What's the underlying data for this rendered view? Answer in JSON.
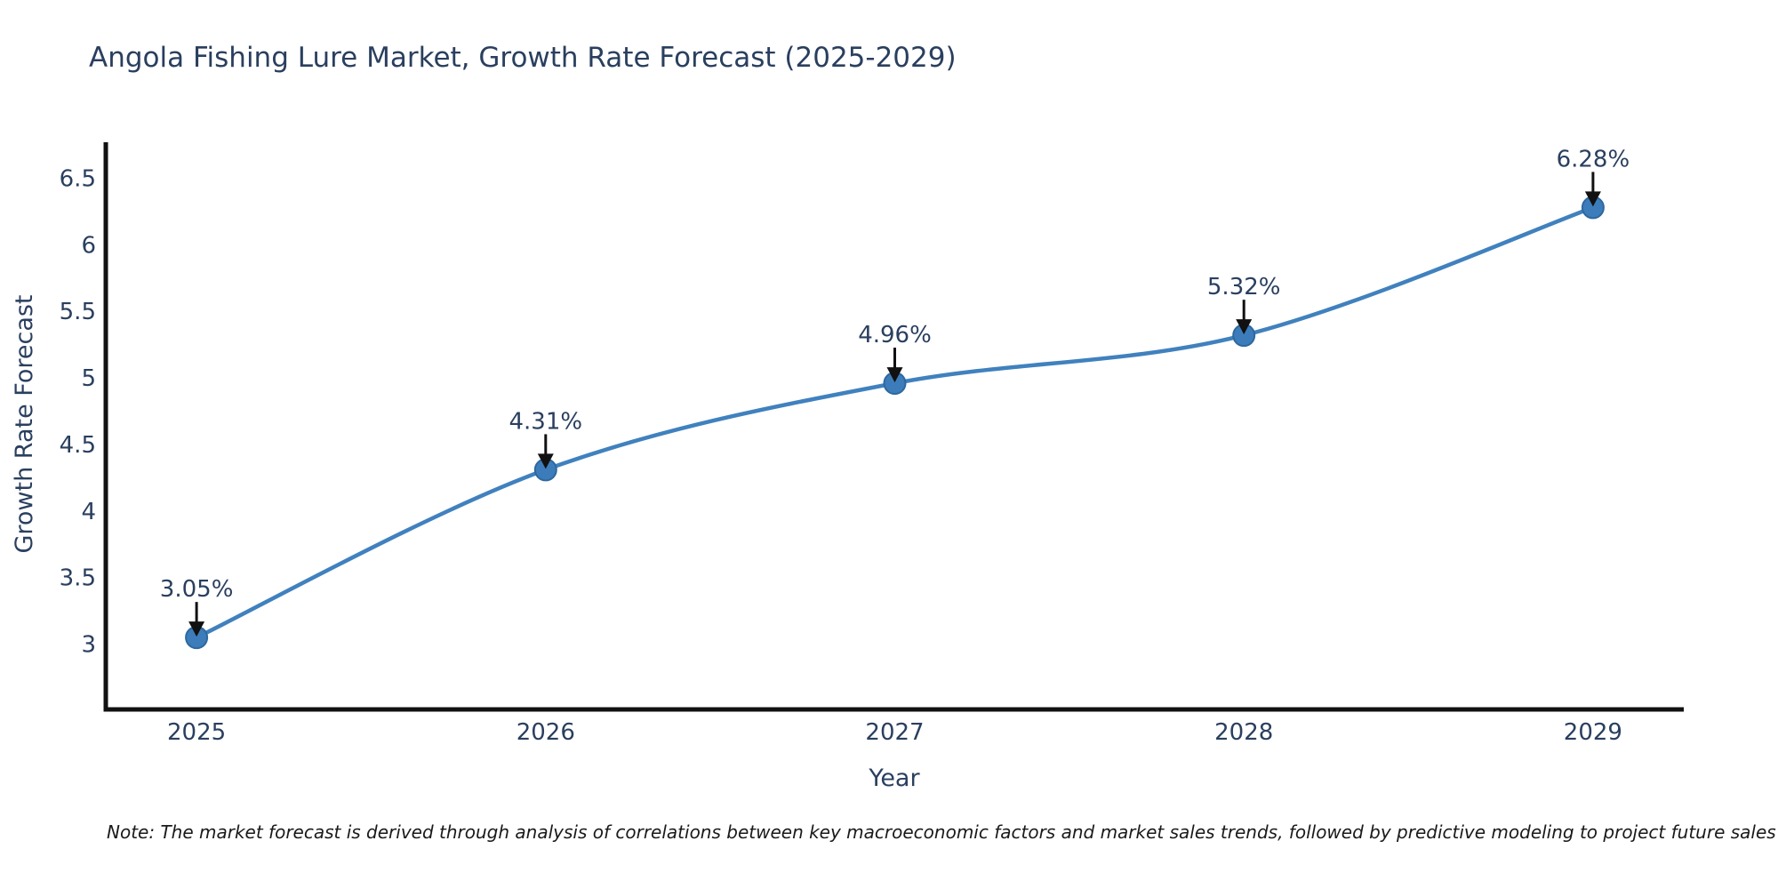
{
  "page": {
    "background_color": "#ffffff"
  },
  "chart_data": {
    "type": "line",
    "title": "Angola Fishing Lure Market, Growth Rate Forecast (2025-2029)",
    "xlabel": "Year",
    "ylabel": "Growth Rate Forecast",
    "categories": [
      2025,
      2026,
      2027,
      2028,
      2029
    ],
    "values": [
      3.05,
      4.31,
      4.96,
      5.32,
      6.28
    ],
    "point_labels": [
      "3.05%",
      "4.31%",
      "4.96%",
      "5.32%",
      "6.28%"
    ],
    "x_tick_labels": [
      "2025",
      "2026",
      "2027",
      "2028",
      "2029"
    ],
    "y_ticks": [
      3,
      3.5,
      4,
      4.5,
      5,
      5.5,
      6,
      6.5
    ],
    "y_tick_labels": [
      "3",
      "3.5",
      "4",
      "4.5",
      "5",
      "5.5",
      "6",
      "6.5"
    ],
    "xlim": [
      2024.74,
      2029.26
    ],
    "ylim": [
      2.51,
      6.77
    ],
    "grid": false,
    "legend": "none",
    "smoothing": "spline",
    "colors": {
      "line": "#4081be",
      "marker_fill": "#3d7cba",
      "marker_edge": "#2e689f",
      "text": "#2a3f5f",
      "axis": "#111111",
      "annotation_arrow": "#111111"
    }
  },
  "note": {
    "text": "Note: The market forecast is derived through analysis of correlations between key macroeconomic factors and market sales trends, followed by predictive modeling to project future sales"
  }
}
